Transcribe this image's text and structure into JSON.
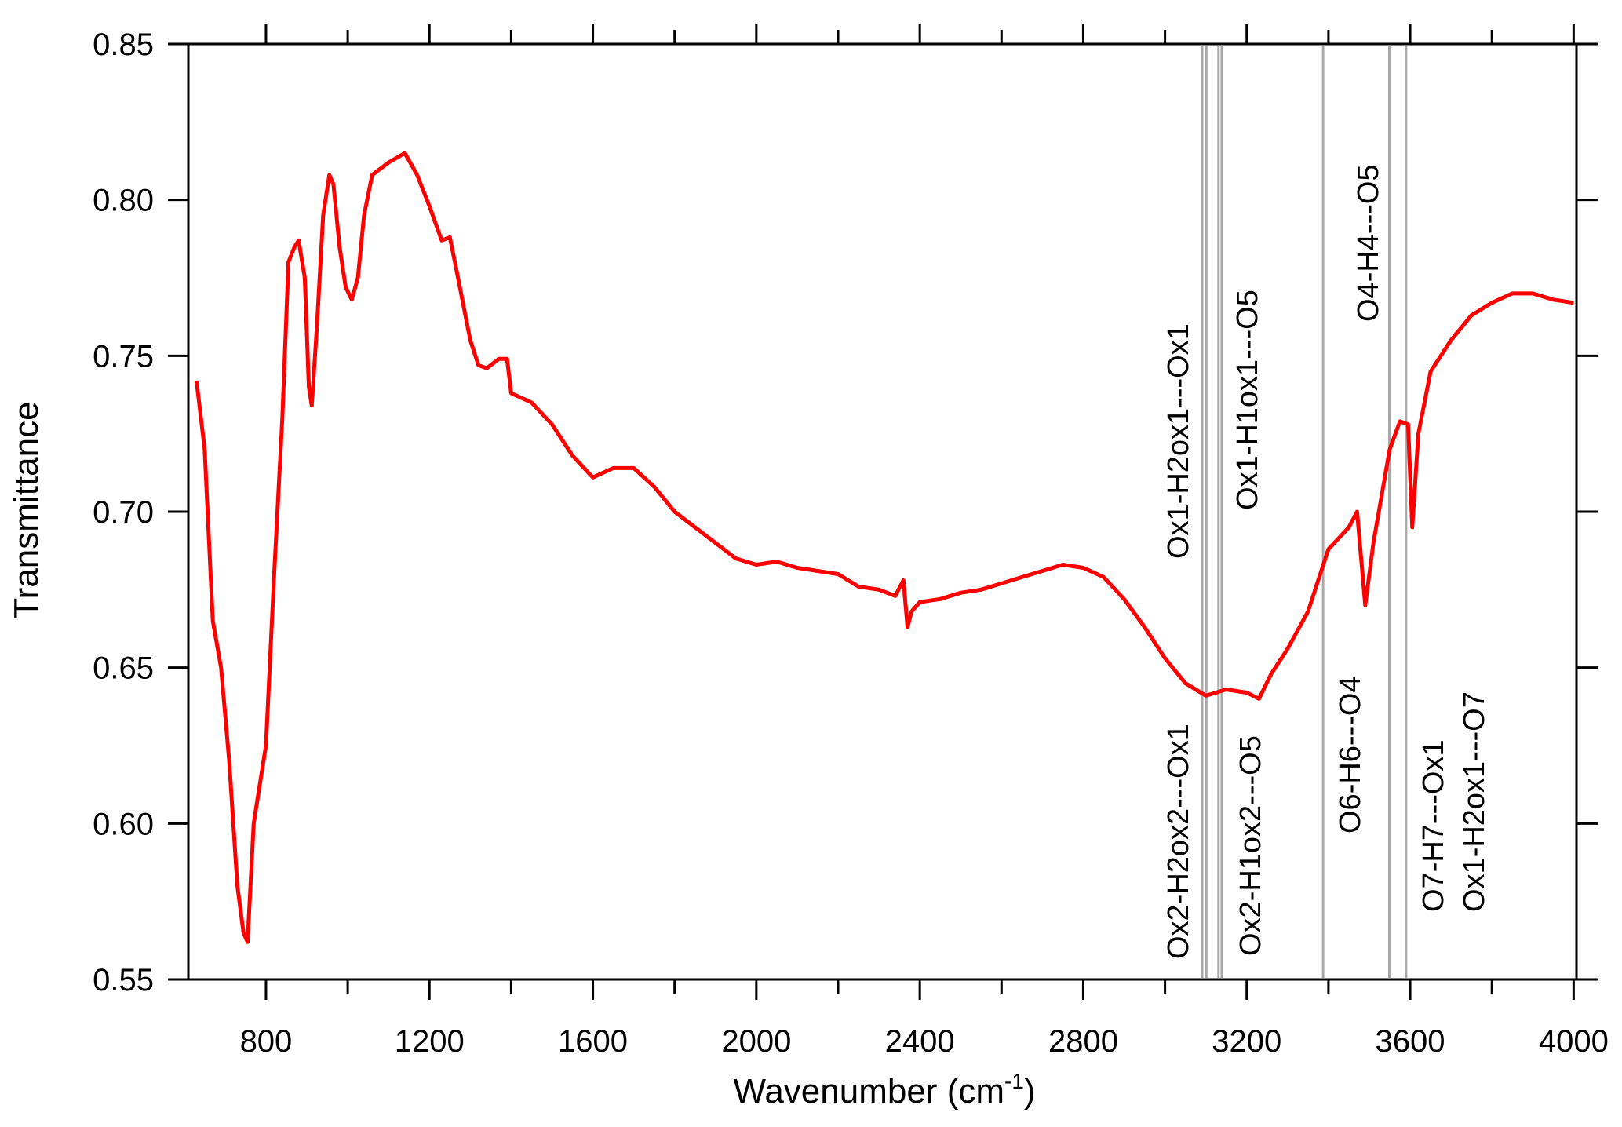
{
  "chart_data": {
    "type": "line",
    "title": "",
    "xlabel": "Wavenumber (cm",
    "xlabel_sup": "-1",
    "xlabel_close": ")",
    "ylabel": "Transmittance",
    "xlim": [
      610,
      4007
    ],
    "ylim": [
      0.55,
      0.85
    ],
    "x_ticks": [
      800,
      1200,
      1600,
      2000,
      2400,
      2800,
      3200,
      3600,
      4000
    ],
    "x_tick_labels": [
      "800",
      "1200",
      "1600",
      "2000",
      "2400",
      "2800",
      "3200",
      "3600",
      "4000"
    ],
    "y_ticks": [
      0.55,
      0.6,
      0.65,
      0.7,
      0.75,
      0.8,
      0.85
    ],
    "y_tick_labels": [
      "0.55",
      "0.60",
      "0.65",
      "0.70",
      "0.75",
      "0.80",
      "0.85"
    ],
    "grid": false,
    "series_color": "#ff0000",
    "marker_line_color": "#a8a8a8",
    "series": [
      {
        "name": "Transmittance",
        "x": [
          630,
          650,
          670,
          690,
          710,
          730,
          745,
          755,
          770,
          800,
          820,
          840,
          855,
          870,
          880,
          895,
          905,
          912,
          925,
          940,
          955,
          965,
          980,
          995,
          1010,
          1025,
          1040,
          1060,
          1100,
          1140,
          1170,
          1200,
          1230,
          1250,
          1270,
          1300,
          1320,
          1340,
          1370,
          1390,
          1400,
          1450,
          1500,
          1550,
          1600,
          1650,
          1700,
          1750,
          1800,
          1850,
          1900,
          1950,
          2000,
          2050,
          2100,
          2150,
          2200,
          2250,
          2300,
          2340,
          2360,
          2370,
          2380,
          2400,
          2450,
          2500,
          2550,
          2600,
          2650,
          2700,
          2750,
          2800,
          2850,
          2900,
          2950,
          3000,
          3050,
          3100,
          3150,
          3200,
          3230,
          3260,
          3300,
          3350,
          3400,
          3450,
          3470,
          3490,
          3510,
          3530,
          3550,
          3575,
          3595,
          3605,
          3620,
          3650,
          3700,
          3750,
          3800,
          3850,
          3900,
          3950,
          4000
        ],
        "y": [
          0.742,
          0.72,
          0.665,
          0.65,
          0.62,
          0.58,
          0.565,
          0.562,
          0.6,
          0.625,
          0.68,
          0.73,
          0.78,
          0.785,
          0.787,
          0.775,
          0.74,
          0.734,
          0.76,
          0.795,
          0.808,
          0.805,
          0.785,
          0.772,
          0.768,
          0.775,
          0.795,
          0.808,
          0.812,
          0.815,
          0.808,
          0.798,
          0.787,
          0.788,
          0.775,
          0.755,
          0.747,
          0.746,
          0.749,
          0.749,
          0.738,
          0.735,
          0.728,
          0.718,
          0.711,
          0.714,
          0.714,
          0.708,
          0.7,
          0.695,
          0.69,
          0.685,
          0.683,
          0.684,
          0.682,
          0.681,
          0.68,
          0.676,
          0.675,
          0.673,
          0.678,
          0.663,
          0.668,
          0.671,
          0.672,
          0.674,
          0.675,
          0.677,
          0.679,
          0.681,
          0.683,
          0.682,
          0.679,
          0.672,
          0.663,
          0.653,
          0.645,
          0.641,
          0.643,
          0.642,
          0.64,
          0.648,
          0.656,
          0.668,
          0.688,
          0.695,
          0.7,
          0.67,
          0.69,
          0.705,
          0.72,
          0.729,
          0.728,
          0.695,
          0.725,
          0.745,
          0.755,
          0.763,
          0.767,
          0.77,
          0.77,
          0.768,
          0.767
        ]
      }
    ],
    "marker_lines": [
      3091,
      3101,
      3131,
      3139,
      3387,
      3549,
      3590
    ],
    "annotations": [
      "Ox2-H2ox2---Ox1",
      "Ox1-H2ox1---Ox1",
      "Ox2-H1ox2---O5",
      "Ox1-H1ox1---O5",
      "O6-H6---O4",
      "O4-H4---O5",
      "O7-H7---Ox1",
      "Ox1-H2ox1---O7"
    ]
  }
}
